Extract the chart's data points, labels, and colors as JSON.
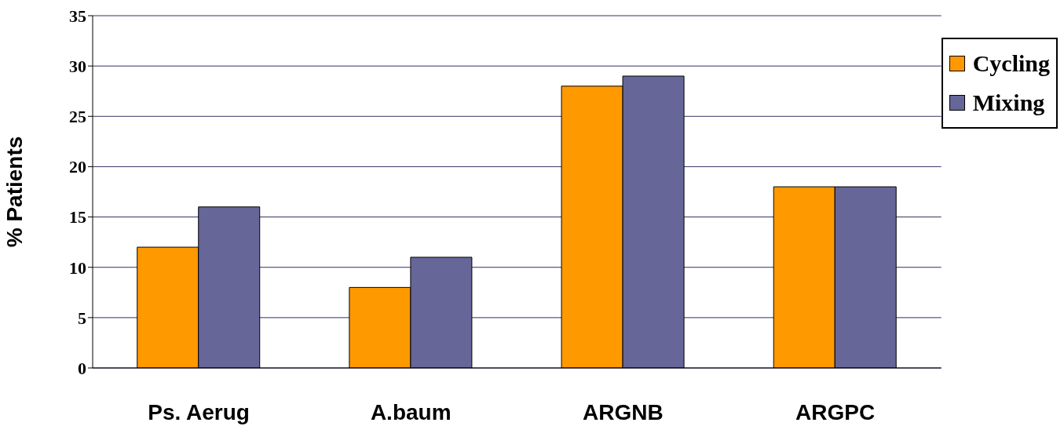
{
  "chart_data": {
    "type": "bar",
    "ylabel": "% Patients",
    "categories": [
      "Ps. Aerug",
      "A.baum",
      "ARGNB",
      "ARGPC"
    ],
    "series": [
      {
        "name": "Cycling",
        "color": "#ff9900",
        "values": [
          12,
          8,
          28,
          18
        ]
      },
      {
        "name": "Mixing",
        "color": "#666699",
        "values": [
          16,
          11,
          29,
          18
        ]
      }
    ],
    "ylim": [
      0,
      35
    ],
    "yticks": [
      0,
      5,
      10,
      15,
      20,
      25,
      30,
      35
    ],
    "grid": "y",
    "legend": "top right"
  }
}
